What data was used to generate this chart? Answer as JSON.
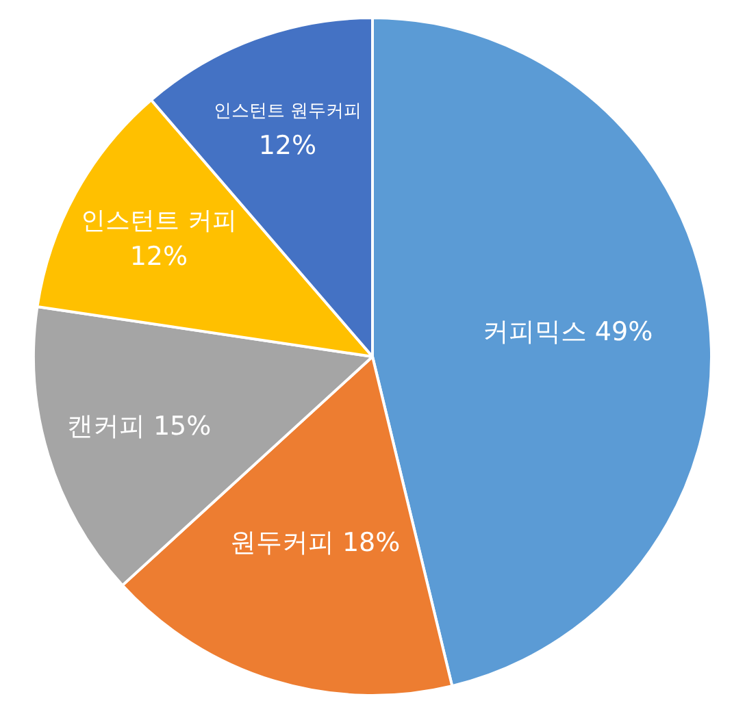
{
  "chart_data": {
    "type": "pie",
    "categories": [
      "커피믹스",
      "원두커피",
      "캔커피",
      "인스턴트 커피",
      "인스턴트 원두커피"
    ],
    "values": [
      49,
      18,
      15,
      12,
      12
    ],
    "colors": [
      "#5b9bd5",
      "#ed7d31",
      "#a5a5a5",
      "#ffc000",
      "#4472c4"
    ],
    "value_labels": [
      "49%",
      "18%",
      "15%",
      "12%",
      "12%"
    ],
    "legend": false
  }
}
